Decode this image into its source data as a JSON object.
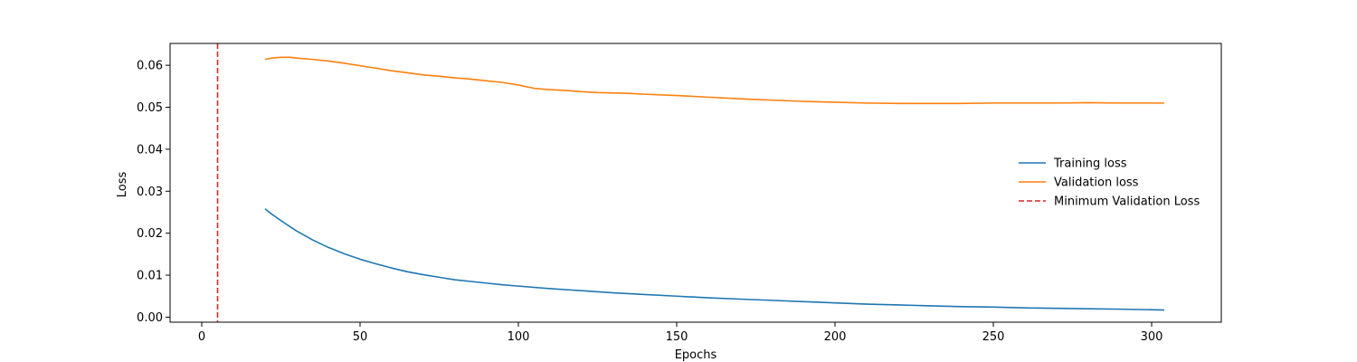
{
  "chart_data": {
    "type": "line",
    "title": "",
    "xlabel": "Epochs",
    "ylabel": "Loss",
    "xlim": [
      -10,
      322
    ],
    "ylim": [
      -0.0012,
      0.0652
    ],
    "xticks": [
      0,
      50,
      100,
      150,
      200,
      250,
      300
    ],
    "yticks": [
      0.0,
      0.01,
      0.02,
      0.03,
      0.04,
      0.05,
      0.06
    ],
    "ytick_labels": [
      "0.00",
      "0.01",
      "0.02",
      "0.03",
      "0.04",
      "0.05",
      "0.06"
    ],
    "grid": false,
    "legend_position": "center-right",
    "series": [
      {
        "name": "Training loss",
        "color": "#1f77b4",
        "style": "solid",
        "points": [
          [
            20,
            0.0258
          ],
          [
            22,
            0.0246
          ],
          [
            25,
            0.023
          ],
          [
            30,
            0.0205
          ],
          [
            35,
            0.0184
          ],
          [
            40,
            0.0166
          ],
          [
            45,
            0.0151
          ],
          [
            50,
            0.0138
          ],
          [
            55,
            0.0127
          ],
          [
            60,
            0.0117
          ],
          [
            65,
            0.0108
          ],
          [
            70,
            0.0101
          ],
          [
            75,
            0.0095
          ],
          [
            80,
            0.0089
          ],
          [
            85,
            0.0085
          ],
          [
            90,
            0.0081
          ],
          [
            95,
            0.0077
          ],
          [
            100,
            0.0074
          ],
          [
            110,
            0.0068
          ],
          [
            120,
            0.0063
          ],
          [
            130,
            0.0058
          ],
          [
            140,
            0.0054
          ],
          [
            150,
            0.005
          ],
          [
            160,
            0.0046
          ],
          [
            170,
            0.0043
          ],
          [
            180,
            0.004
          ],
          [
            190,
            0.0037
          ],
          [
            200,
            0.0034
          ],
          [
            210,
            0.0031
          ],
          [
            220,
            0.0029
          ],
          [
            230,
            0.0027
          ],
          [
            240,
            0.0025
          ],
          [
            250,
            0.0024
          ],
          [
            260,
            0.0022
          ],
          [
            270,
            0.0021
          ],
          [
            280,
            0.002
          ],
          [
            290,
            0.0019
          ],
          [
            304,
            0.0017
          ]
        ]
      },
      {
        "name": "Validation loss",
        "color": "#ff7f0e",
        "style": "solid",
        "points": [
          [
            20,
            0.0614
          ],
          [
            22,
            0.0617
          ],
          [
            25,
            0.0619
          ],
          [
            28,
            0.0619
          ],
          [
            30,
            0.0617
          ],
          [
            35,
            0.0614
          ],
          [
            40,
            0.061
          ],
          [
            45,
            0.0605
          ],
          [
            50,
            0.0599
          ],
          [
            55,
            0.0593
          ],
          [
            60,
            0.0587
          ],
          [
            65,
            0.0582
          ],
          [
            70,
            0.0577
          ],
          [
            75,
            0.0574
          ],
          [
            80,
            0.057
          ],
          [
            85,
            0.0567
          ],
          [
            90,
            0.0563
          ],
          [
            95,
            0.0559
          ],
          [
            100,
            0.0553
          ],
          [
            105,
            0.0545
          ],
          [
            110,
            0.0542
          ],
          [
            115,
            0.054
          ],
          [
            120,
            0.0537
          ],
          [
            125,
            0.0535
          ],
          [
            130,
            0.0534
          ],
          [
            135,
            0.0533
          ],
          [
            140,
            0.0531
          ],
          [
            150,
            0.0528
          ],
          [
            160,
            0.0524
          ],
          [
            170,
            0.052
          ],
          [
            180,
            0.0517
          ],
          [
            190,
            0.0514
          ],
          [
            200,
            0.0512
          ],
          [
            210,
            0.051
          ],
          [
            220,
            0.0509
          ],
          [
            230,
            0.0509
          ],
          [
            240,
            0.0509
          ],
          [
            250,
            0.051
          ],
          [
            260,
            0.051
          ],
          [
            270,
            0.051
          ],
          [
            280,
            0.0511
          ],
          [
            290,
            0.051
          ],
          [
            304,
            0.051
          ]
        ]
      },
      {
        "name": "Minimum Validation Loss",
        "color": "#d62728",
        "style": "dashed",
        "vline_x": 5
      }
    ]
  }
}
